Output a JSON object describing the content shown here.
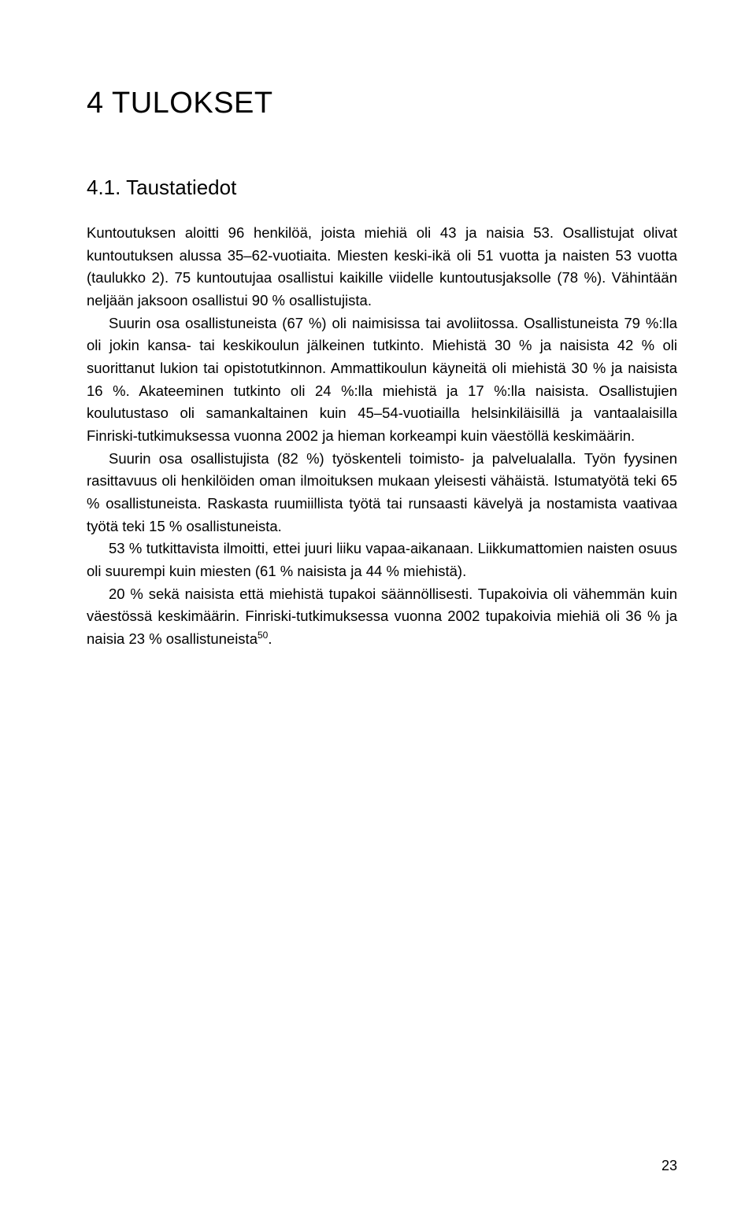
{
  "chapter_title": "4  TULOKSET",
  "section_title": "4.1. Taustatiedot",
  "paragraphs": [
    {
      "indent": false,
      "text": "Kuntoutuksen aloitti 96 henkilöä, joista miehiä oli 43 ja naisia 53. Osallistujat olivat kuntoutuksen alussa 35–62-vuotiaita. Miesten keski-ikä oli 51 vuotta ja naisten 53 vuotta (taulukko 2). 75 kuntoutujaa osallistui kaikille viidelle kuntoutusjaksolle (78 %). Vähintään neljään jaksoon osallistui 90 % osallistujista."
    },
    {
      "indent": true,
      "text": "Suurin osa osallistuneista (67 %) oli naimisissa tai avoliitossa. Osallistuneista 79 %:lla oli jokin kansa- tai keskikoulun jälkeinen tutkinto. Miehistä 30 % ja naisista 42 % oli suorittanut lukion tai opistotutkinnon. Ammattikoulun käyneitä oli miehistä 30 % ja naisista 16 %. Akateeminen tutkinto oli 24 %:lla miehistä ja 17 %:lla naisista. Osallistujien koulutustaso oli samankaltainen kuin 45–54-vuotiailla helsinkiläisillä ja vantaalaisilla Finriski-tutkimuksessa vuonna 2002 ja hieman korkeampi kuin väestöllä keskimäärin."
    },
    {
      "indent": true,
      "text": "Suurin osa osallistujista (82 %) työskenteli toimisto- ja palvelualalla. Työn fyysinen rasittavuus oli henkilöiden oman ilmoituksen mukaan yleisesti vähäistä. Istumatyötä teki 65 % osallistuneista. Raskasta ruumiillista työtä tai runsaasti kävelyä ja nostamista vaativaa työtä teki 15 % osallistuneista."
    },
    {
      "indent": true,
      "text": "53 % tutkittavista ilmoitti, ettei juuri liiku vapaa-aikanaan. Liikkumattomien naisten osuus oli suurempi kuin miesten (61 % naisista ja 44 % miehistä)."
    },
    {
      "indent": true,
      "text": "20 % sekä naisista että miehistä tupakoi säännöllisesti. Tupakoivia oli vähemmän kuin väestössä keskimäärin. Finriski-tutkimuksessa vuonna 2002 tupakoivia miehiä oli 36 % ja naisia 23 % osallistuneista",
      "sup": "50",
      "tail": "."
    }
  ],
  "page_number": "23"
}
